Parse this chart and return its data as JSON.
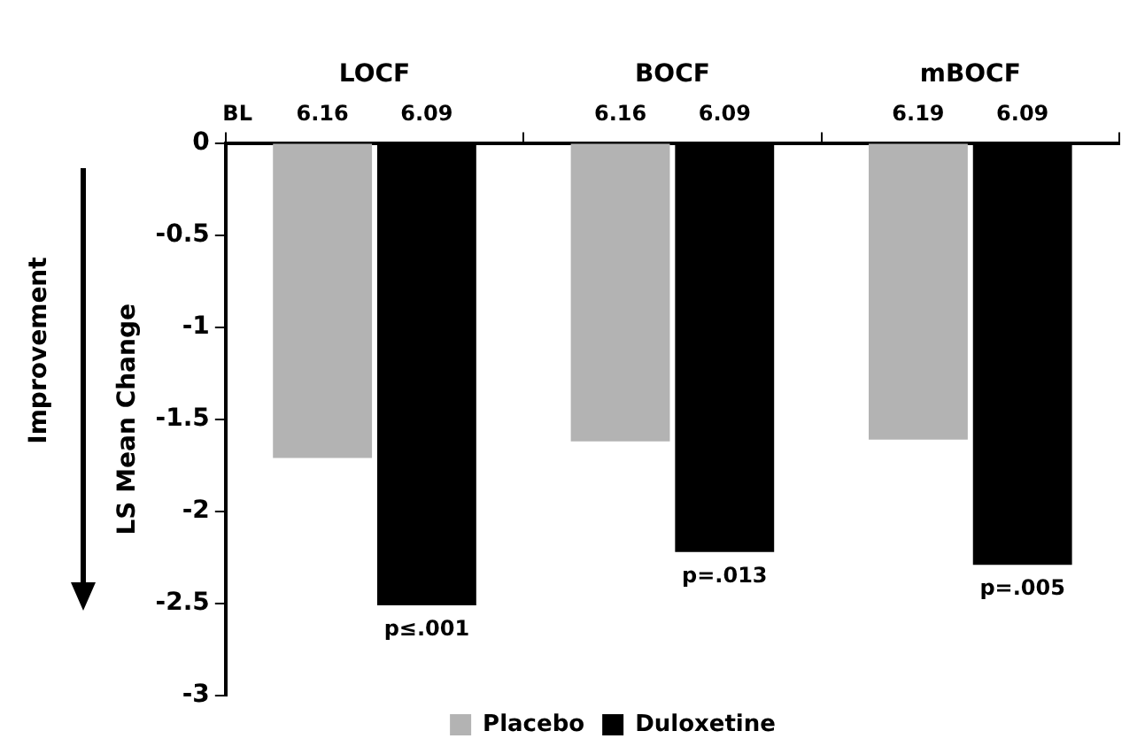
{
  "chart_data": {
    "type": "bar",
    "ylabel": "LS Mean Change",
    "categories": [
      "LOCF",
      "BOCF",
      "mBOCF"
    ],
    "series": [
      {
        "name": "Placebo",
        "color": "#b3b3b3",
        "values": [
          -1.71,
          -1.62,
          -1.61
        ]
      },
      {
        "name": "Duloxetine",
        "color": "#000000",
        "values": [
          -2.51,
          -2.22,
          -2.29
        ]
      }
    ],
    "ylim": [
      -3,
      0
    ],
    "yticks": [
      0,
      -0.5,
      -1,
      -1.5,
      -2,
      -2.5,
      -3
    ],
    "grid": false,
    "legend": "bottom",
    "annotations": [
      "BL",
      "Improvement",
      {
        "text": "6.16",
        "x": "LOCF",
        "y": 0
      },
      {
        "text": "6.09",
        "x": "LOCF",
        "y": 0
      },
      {
        "text": "6.16",
        "x": "BOCF",
        "y": 0
      },
      {
        "text": "6.09",
        "x": "BOCF",
        "y": 0
      },
      {
        "text": "6.19",
        "x": "mBOCF",
        "y": 0
      },
      {
        "text": "6.09",
        "x": "mBOCF",
        "y": 0
      },
      {
        "text": "p≤.001",
        "x": "LOCF",
        "y": -2.51
      },
      {
        "text": "p=.013",
        "x": "BOCF",
        "y": -2.22
      },
      {
        "text": "p=.005",
        "x": "mBOCF",
        "y": -2.29
      }
    ]
  }
}
